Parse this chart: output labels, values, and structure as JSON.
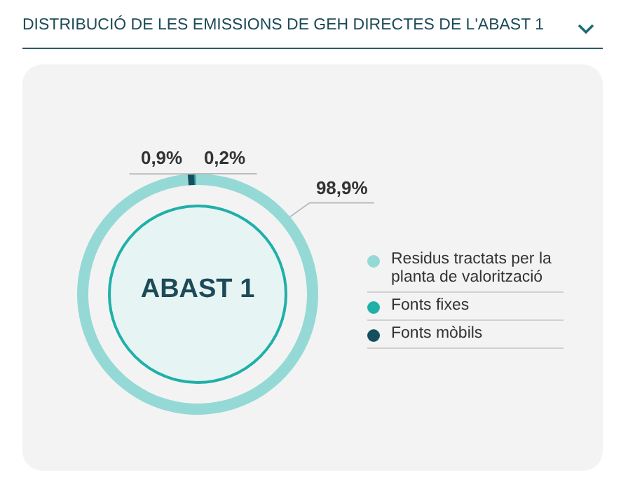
{
  "chart_data": {
    "type": "donut",
    "title": "DISTRIBUCIÓ DE LES EMISSIONS DE GEH DIRECTES DE L'ABAST 1",
    "categories": [
      "Residus tractats per la planta de valorització",
      "Fonts fixes",
      "Fonts mòbils"
    ],
    "values": [
      98.9,
      0.2,
      0.9
    ],
    "value_labels": [
      "98,9%",
      "0,2%",
      "0,9%"
    ],
    "colors": [
      "#94d9d5",
      "#1fb0a8",
      "#154f5f"
    ],
    "annotations": [
      "ABAST 1"
    ],
    "legend": "right"
  }
}
